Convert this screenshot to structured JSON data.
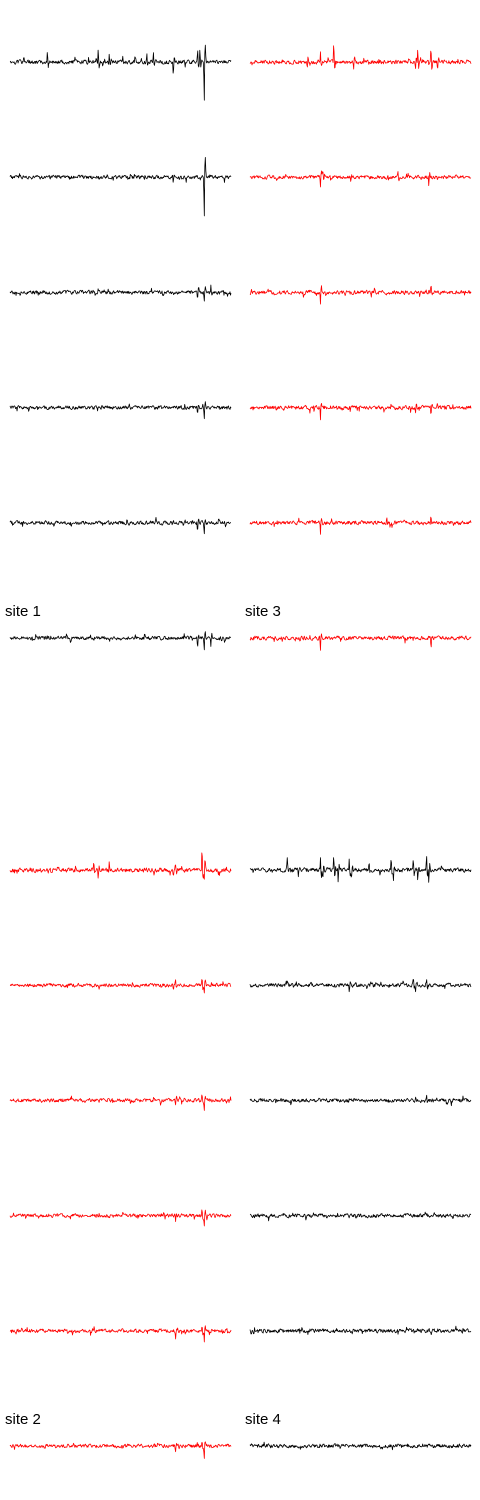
{
  "figure": {
    "colors": {
      "black": "#000000",
      "red": "#ff0000"
    },
    "background": "#ffffff"
  },
  "chart_data": {
    "type": "line",
    "description_of_signal": "multichannel extracellular voltage traces (noise with spike events), 6 channels per site",
    "panels": [
      {
        "label": "site 1",
        "color": "#000000",
        "channels": [
          {
            "index": 1,
            "noise": 1.8,
            "spikes": [
              {
                "t": 0.17,
                "a": 11,
                "p": 1
              },
              {
                "t": 0.4,
                "a": 13,
                "p": 1
              },
              {
                "t": 0.45,
                "a": 8,
                "p": 1
              },
              {
                "t": 0.62,
                "a": 10,
                "p": 1
              },
              {
                "t": 0.65,
                "a": 9,
                "p": 1
              },
              {
                "t": 0.74,
                "a": 15,
                "p": -1
              },
              {
                "t": 0.85,
                "a": 16,
                "p": 1
              },
              {
                "t": 0.86,
                "a": 12,
                "p": 1
              },
              {
                "t": 0.88,
                "a": 44,
                "p": -1
              }
            ]
          },
          {
            "index": 2,
            "noise": 1.6,
            "spikes": [
              {
                "t": 0.74,
                "a": 6,
                "p": -1
              },
              {
                "t": 0.88,
                "a": 46,
                "p": -1
              }
            ]
          },
          {
            "index": 3,
            "noise": 1.6,
            "spikes": [
              {
                "t": 0.85,
                "a": 8,
                "p": -1
              },
              {
                "t": 0.88,
                "a": 12,
                "p": -1
              },
              {
                "t": 0.91,
                "a": 7,
                "p": 1
              }
            ]
          },
          {
            "index": 4,
            "noise": 1.6,
            "spikes": [
              {
                "t": 0.85,
                "a": 8,
                "p": -1
              },
              {
                "t": 0.88,
                "a": 12,
                "p": -1
              }
            ]
          },
          {
            "index": 5,
            "noise": 1.6,
            "spikes": [
              {
                "t": 0.85,
                "a": 8,
                "p": -1
              },
              {
                "t": 0.88,
                "a": 13,
                "p": -1
              }
            ]
          },
          {
            "index": 6,
            "noise": 1.6,
            "spikes": [
              {
                "t": 0.85,
                "a": 8,
                "p": -1
              },
              {
                "t": 0.88,
                "a": 13,
                "p": -1
              },
              {
                "t": 0.91,
                "a": 10,
                "p": -1
              }
            ]
          }
        ]
      },
      {
        "label": "site 3",
        "color": "#ff0000",
        "channels": [
          {
            "index": 1,
            "noise": 1.7,
            "spikes": [
              {
                "t": 0.26,
                "a": 10,
                "p": -1
              },
              {
                "t": 0.32,
                "a": 11,
                "p": 1
              },
              {
                "t": 0.38,
                "a": 22,
                "p": 1
              },
              {
                "t": 0.47,
                "a": 9,
                "p": -1
              },
              {
                "t": 0.76,
                "a": 14,
                "p": 1
              },
              {
                "t": 0.75,
                "a": 10,
                "p": -1
              },
              {
                "t": 0.82,
                "a": 17,
                "p": 1
              },
              {
                "t": 0.85,
                "a": 9,
                "p": -1
              }
            ]
          },
          {
            "index": 2,
            "noise": 1.6,
            "spikes": [
              {
                "t": 0.32,
                "a": 10,
                "p": -1
              },
              {
                "t": 0.33,
                "a": 8,
                "p": 1
              },
              {
                "t": 0.67,
                "a": 7,
                "p": 1
              },
              {
                "t": 0.81,
                "a": 8,
                "p": -1
              }
            ]
          },
          {
            "index": 3,
            "noise": 1.7,
            "spikes": [
              {
                "t": 0.32,
                "a": 11,
                "p": -1
              },
              {
                "t": 0.55,
                "a": 6,
                "p": -1
              },
              {
                "t": 0.82,
                "a": 8,
                "p": 1
              }
            ]
          },
          {
            "index": 4,
            "noise": 1.7,
            "spikes": [
              {
                "t": 0.32,
                "a": 12,
                "p": -1
              },
              {
                "t": 0.75,
                "a": 7,
                "p": -1
              },
              {
                "t": 0.82,
                "a": 8,
                "p": -1
              }
            ]
          },
          {
            "index": 5,
            "noise": 1.7,
            "spikes": [
              {
                "t": 0.32,
                "a": 11,
                "p": -1
              },
              {
                "t": 0.62,
                "a": 7,
                "p": 1
              },
              {
                "t": 0.82,
                "a": 8,
                "p": 1
              }
            ]
          },
          {
            "index": 6,
            "noise": 1.7,
            "spikes": [
              {
                "t": 0.32,
                "a": 12,
                "p": -1
              },
              {
                "t": 0.82,
                "a": 8,
                "p": -1
              }
            ]
          }
        ]
      },
      {
        "label": "site 2",
        "color": "#ff0000",
        "channels": [
          {
            "index": 1,
            "noise": 1.8,
            "spikes": [
              {
                "t": 0.38,
                "a": 10,
                "p": 1
              },
              {
                "t": 0.4,
                "a": 9,
                "p": -1
              },
              {
                "t": 0.45,
                "a": 8,
                "p": 1
              },
              {
                "t": 0.74,
                "a": 8,
                "p": -1
              },
              {
                "t": 0.75,
                "a": 7,
                "p": 1
              },
              {
                "t": 0.87,
                "a": 28,
                "p": 1
              },
              {
                "t": 0.88,
                "a": 14,
                "p": -1
              }
            ]
          },
          {
            "index": 2,
            "noise": 1.6,
            "spikes": [
              {
                "t": 0.74,
                "a": 6,
                "p": -1
              },
              {
                "t": 0.75,
                "a": 6,
                "p": 1
              },
              {
                "t": 0.87,
                "a": 10,
                "p": 1
              },
              {
                "t": 0.88,
                "a": 10,
                "p": -1
              }
            ]
          },
          {
            "index": 3,
            "noise": 1.6,
            "spikes": [
              {
                "t": 0.75,
                "a": 7,
                "p": -1
              },
              {
                "t": 0.88,
                "a": 12,
                "p": -1
              },
              {
                "t": 0.87,
                "a": 8,
                "p": 1
              }
            ]
          },
          {
            "index": 4,
            "noise": 1.6,
            "spikes": [
              {
                "t": 0.75,
                "a": 7,
                "p": -1
              },
              {
                "t": 0.88,
                "a": 12,
                "p": -1
              },
              {
                "t": 0.87,
                "a": 8,
                "p": 1
              }
            ]
          },
          {
            "index": 5,
            "noise": 1.6,
            "spikes": [
              {
                "t": 0.75,
                "a": 6,
                "p": -1
              },
              {
                "t": 0.88,
                "a": 13,
                "p": -1
              },
              {
                "t": 0.87,
                "a": 8,
                "p": 1
              }
            ]
          },
          {
            "index": 6,
            "noise": 1.6,
            "spikes": [
              {
                "t": 0.75,
                "a": 6,
                "p": -1
              },
              {
                "t": 0.88,
                "a": 14,
                "p": -1
              },
              {
                "t": 0.87,
                "a": 8,
                "p": 1
              }
            ]
          }
        ]
      },
      {
        "label": "site 4",
        "color": "#000000",
        "channels": [
          {
            "index": 1,
            "noise": 1.8,
            "spikes": [
              {
                "t": 0.17,
                "a": 10,
                "p": 1
              },
              {
                "t": 0.22,
                "a": 9,
                "p": -1
              },
              {
                "t": 0.32,
                "a": 13,
                "p": 1
              },
              {
                "t": 0.33,
                "a": 12,
                "p": -1
              },
              {
                "t": 0.38,
                "a": 17,
                "p": 1
              },
              {
                "t": 0.4,
                "a": 14,
                "p": -1
              },
              {
                "t": 0.45,
                "a": 13,
                "p": 1
              },
              {
                "t": 0.46,
                "a": 10,
                "p": -1
              },
              {
                "t": 0.54,
                "a": 9,
                "p": 1
              },
              {
                "t": 0.64,
                "a": 13,
                "p": 1
              },
              {
                "t": 0.65,
                "a": 11,
                "p": -1
              },
              {
                "t": 0.74,
                "a": 14,
                "p": 1
              },
              {
                "t": 0.76,
                "a": 10,
                "p": -1
              },
              {
                "t": 0.8,
                "a": 17,
                "p": 1
              },
              {
                "t": 0.81,
                "a": 12,
                "p": -1
              }
            ]
          },
          {
            "index": 2,
            "noise": 1.6,
            "spikes": [
              {
                "t": 0.45,
                "a": 6,
                "p": -1
              },
              {
                "t": 0.74,
                "a": 9,
                "p": 1
              },
              {
                "t": 0.75,
                "a": 8,
                "p": -1
              },
              {
                "t": 0.8,
                "a": 8,
                "p": 1
              }
            ]
          },
          {
            "index": 3,
            "noise": 1.6,
            "spikes": [
              {
                "t": 0.45,
                "a": 6,
                "p": -1
              },
              {
                "t": 0.45,
                "a": 7,
                "p": 1
              },
              {
                "t": 0.8,
                "a": 6,
                "p": 1
              }
            ]
          },
          {
            "index": 4,
            "noise": 1.7,
            "spikes": [
              {
                "t": 0.45,
                "a": 7,
                "p": -1
              },
              {
                "t": 0.45,
                "a": 6,
                "p": 1
              }
            ]
          },
          {
            "index": 5,
            "noise": 1.7,
            "spikes": [
              {
                "t": 0.45,
                "a": 6,
                "p": -1
              },
              {
                "t": 0.45,
                "a": 6,
                "p": 1
              }
            ]
          },
          {
            "index": 6,
            "noise": 1.7,
            "spikes": [
              {
                "t": 0.45,
                "a": 7,
                "p": -1
              },
              {
                "t": 0.45,
                "a": 7,
                "p": 1
              }
            ]
          }
        ]
      }
    ],
    "axes_visible": false,
    "grid": false,
    "legend": false
  }
}
